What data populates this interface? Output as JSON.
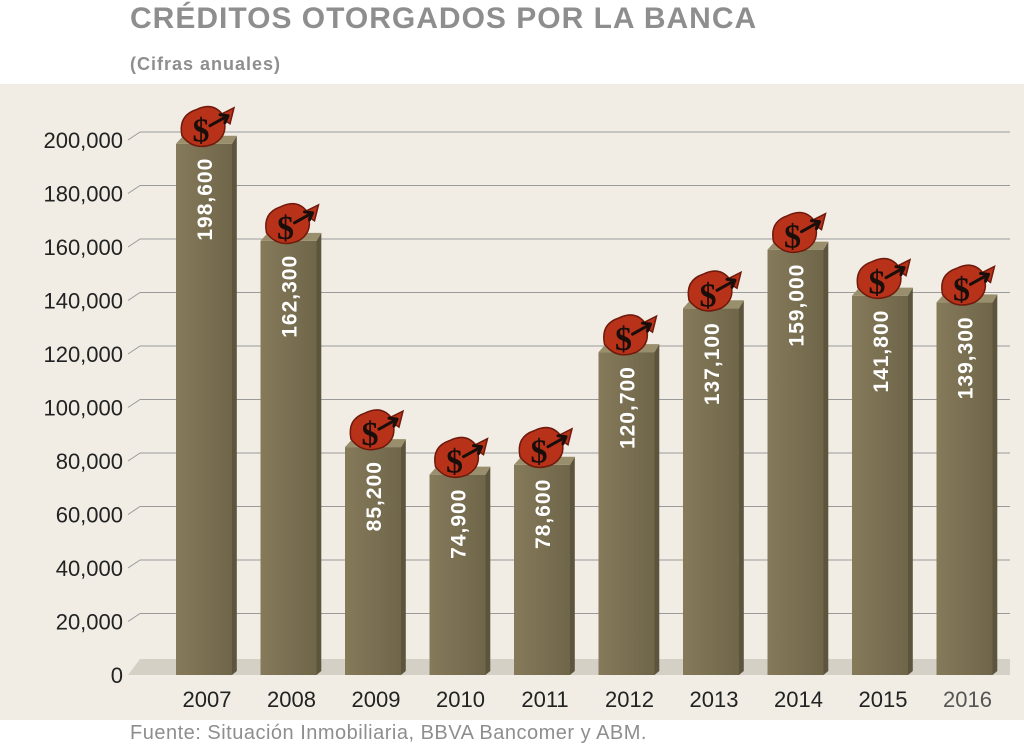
{
  "title": "CRÉDITOS OTORGADOS POR LA BANCA",
  "subtitle": "(Cifras anuales)",
  "source": "Fuente: Situación Inmobiliaria, BBVA Bancomer y ABM.",
  "colors": {
    "panel_bg": "#f1ede5",
    "bar_front": "#7b7153",
    "bar_side": "#5c543c",
    "bar_top": "#9a8f6c",
    "gridline": "#9a9a9a",
    "icon_red": "#b8321a",
    "label_text": "#ffffff",
    "axis_text": "#222222"
  },
  "icon": "dollar-arrow-icon",
  "chart_data": {
    "type": "bar",
    "categories": [
      "2007",
      "2008",
      "2009",
      "2010",
      "2011",
      "2012",
      "2013",
      "2014",
      "2015",
      "2016"
    ],
    "values": [
      198600,
      162300,
      85200,
      74900,
      78600,
      120700,
      137100,
      159000,
      141800,
      139300
    ],
    "data_labels": [
      "198,600",
      "162,300",
      "85,200",
      "74,900",
      "78,600",
      "120,700",
      "137,100",
      "159,000",
      "141,800",
      "139,300"
    ],
    "yticks": [
      "0",
      "20,000",
      "40,000",
      "60,000",
      "80,000",
      "100,000",
      "120,000",
      "140,000",
      "160,000",
      "180,000",
      "200,000"
    ],
    "ylim": [
      0,
      200000
    ],
    "grid": true,
    "xlabel": "",
    "ylabel": ""
  }
}
